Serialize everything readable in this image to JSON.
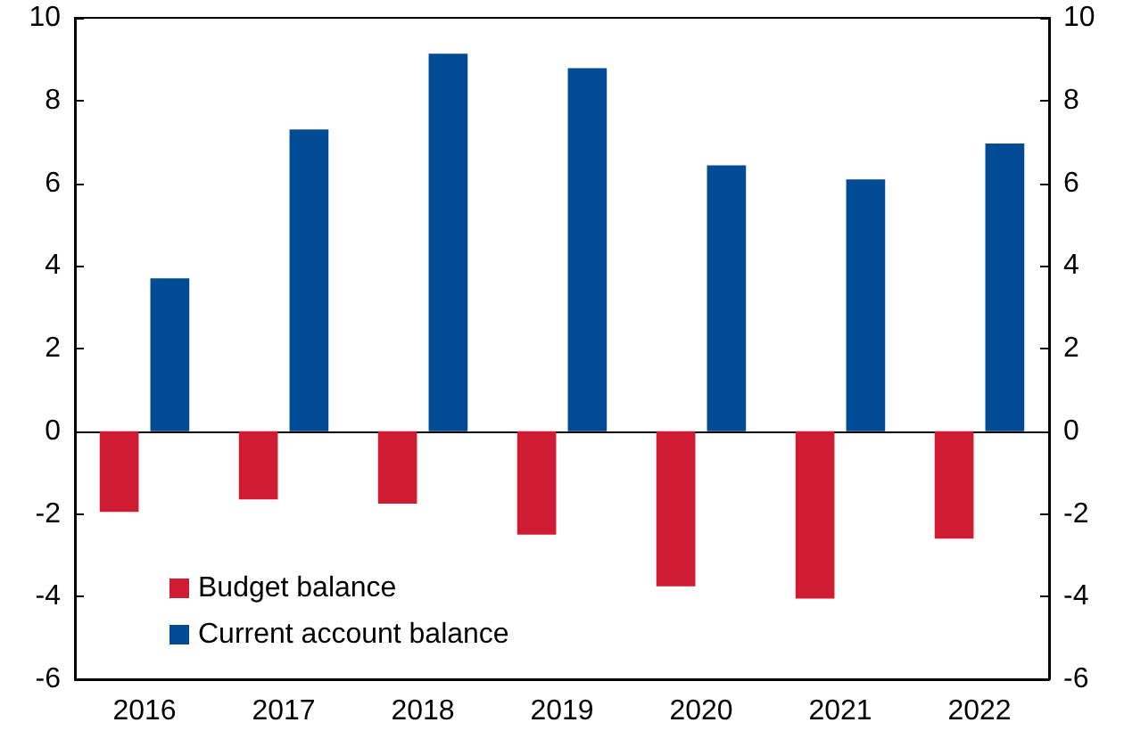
{
  "chart_data": {
    "type": "bar",
    "categories": [
      "2016",
      "2017",
      "2018",
      "2019",
      "2020",
      "2021",
      "2022"
    ],
    "series": [
      {
        "name": "Budget balance",
        "color": "#d01c33",
        "values": [
          -1.95,
          -1.65,
          -1.75,
          -2.5,
          -3.75,
          -4.05,
          -2.6
        ]
      },
      {
        "name": "Current account balance",
        "color": "#004b93",
        "values": [
          3.7,
          7.3,
          9.13,
          8.78,
          6.43,
          6.09,
          6.96
        ]
      }
    ],
    "ylim": [
      -6,
      10
    ],
    "yticks": [
      -6,
      -4,
      -2,
      0,
      2,
      4,
      6,
      8,
      10
    ],
    "y2lim": [
      -6,
      10
    ],
    "y2ticks": [
      -6,
      -4,
      -2,
      0,
      2,
      4,
      6,
      8,
      10
    ],
    "legend": "bottom left"
  }
}
